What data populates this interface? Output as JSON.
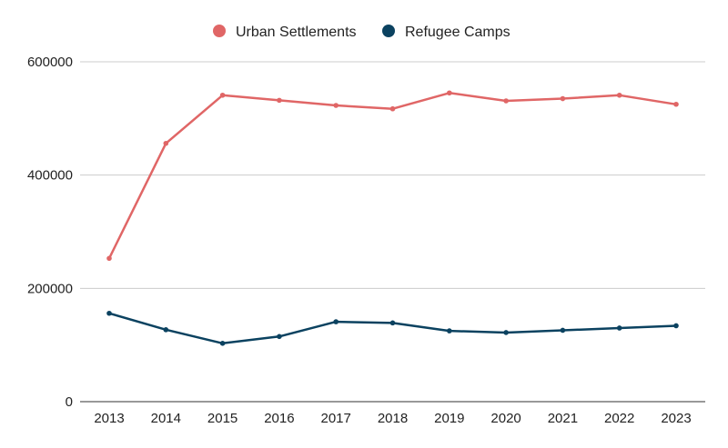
{
  "chart_data": {
    "type": "line",
    "title": "",
    "xlabel": "",
    "ylabel": "",
    "categories": [
      "2013",
      "2014",
      "2015",
      "2016",
      "2017",
      "2018",
      "2019",
      "2020",
      "2021",
      "2022",
      "2023"
    ],
    "y_ticks": [
      "0",
      "200000",
      "400000",
      "600000"
    ],
    "ylim": [
      0,
      600000
    ],
    "grid": true,
    "legend_position": "top-center",
    "series": [
      {
        "name": "Urban Settlements",
        "color": "#e06666",
        "values": [
          253000,
          456000,
          541000,
          532000,
          523000,
          517000,
          545000,
          531000,
          535000,
          541000,
          525000
        ]
      },
      {
        "name": "Refugee Camps",
        "color": "#0b4260",
        "values": [
          156000,
          127000,
          103000,
          115000,
          141000,
          139000,
          125000,
          122000,
          126000,
          130000,
          134000
        ]
      }
    ]
  }
}
